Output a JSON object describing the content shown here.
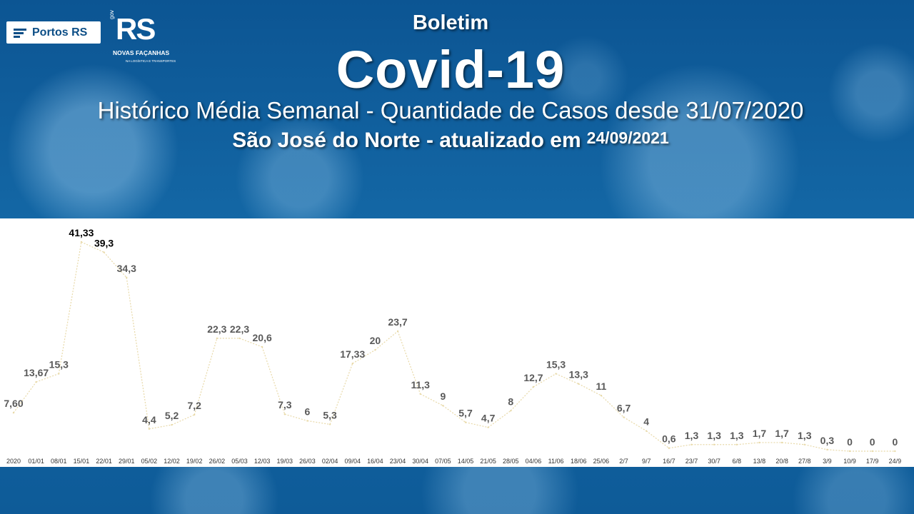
{
  "header": {
    "logo_portos": "Portos RS",
    "logo_rs": "RS",
    "logo_gov": "gov",
    "logo_slogan": "NOVAS FAÇANHAS",
    "logo_sub": "NA LOGÍSTICA E TRANSPORTES",
    "kicker": "Boletim",
    "title": "Covid-19",
    "subtitle": "Histórico Média Semanal - Quantidade de Casos desde 31/07/2020",
    "location_line": "São José do Norte - atualizado em",
    "updated_date": "24/09/2021"
  },
  "colors": {
    "banner": "#0f5d99",
    "line": "#e8d9a8",
    "labels": "#595959",
    "highlight_labels": "#000000"
  },
  "chart_data": {
    "type": "line",
    "title": "",
    "xlabel": "",
    "ylabel": "",
    "ylim": [
      0,
      42
    ],
    "grid": false,
    "categories": [
      "2020",
      "01/01",
      "08/01",
      "15/01",
      "22/01",
      "29/01",
      "05/02",
      "12/02",
      "19/02",
      "26/02",
      "05/03",
      "12/03",
      "19/03",
      "26/03",
      "02/04",
      "09/04",
      "16/04",
      "23/04",
      "30/04",
      "07/05",
      "14/05",
      "21/05",
      "28/05",
      "04/06",
      "11/06",
      "18/06",
      "25/06",
      "2/7",
      "9/7",
      "16/7",
      "23/7",
      "30/7",
      "6/8",
      "13/8",
      "20/8",
      "27/8",
      "3/9",
      "10/9",
      "17/9",
      "24/9"
    ],
    "values": [
      7.6,
      13.67,
      15.3,
      41.33,
      39.3,
      34.3,
      4.4,
      5.2,
      7.2,
      22.3,
      22.3,
      20.6,
      7.3,
      6,
      5.3,
      17.33,
      20,
      23.7,
      11.3,
      9,
      5.7,
      4.7,
      8,
      12.7,
      15.3,
      13.3,
      11,
      6.7,
      4,
      0.6,
      1.3,
      1.3,
      1.3,
      1.7,
      1.7,
      1.3,
      0.3,
      0,
      0,
      0
    ],
    "data_labels": [
      "7,60",
      "13,67",
      "15,3",
      "41,33",
      "39,3",
      "34,3",
      "4,4",
      "5,2",
      "7,2",
      "22,3",
      "22,3",
      "20,6",
      "7,3",
      "6",
      "5,3",
      "17,33",
      "20",
      "23,7",
      "11,3",
      "9",
      "5,7",
      "4,7",
      "8",
      "12,7",
      "15,3",
      "13,3",
      "11",
      "6,7",
      "4",
      "0,6",
      "1,3",
      "1,3",
      "1,3",
      "1,7",
      "1,7",
      "1,3",
      "0,3",
      "0",
      "0",
      "0"
    ],
    "highlight_labels": [
      "41,33",
      "39,3"
    ]
  }
}
